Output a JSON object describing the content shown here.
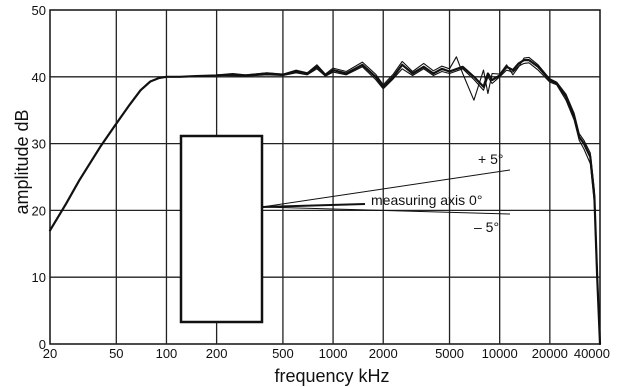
{
  "chart_data": {
    "type": "line",
    "title": "",
    "xlabel": "frequency kHz",
    "ylabel": "amplitude dB",
    "x_scale": "log",
    "xlim": [
      20,
      40000
    ],
    "ylim": [
      0,
      50
    ],
    "grid": true,
    "x_ticks": [
      20,
      50,
      100,
      200,
      500,
      1000,
      2000,
      5000,
      10000,
      20000,
      40000
    ],
    "x_tick_labels": [
      "20",
      "50",
      "100",
      "200",
      "500",
      "1000",
      "2000",
      "5000",
      "10000",
      "20000",
      "40000"
    ],
    "y_ticks": [
      0,
      10,
      20,
      30,
      40,
      50
    ],
    "y_tick_labels": [
      "0",
      "10",
      "20",
      "30",
      "40",
      "50"
    ],
    "annotations": [
      {
        "key": "plus5",
        "text": "+ 5°"
      },
      {
        "key": "axis0",
        "text": "measuring axis 0°"
      },
      {
        "key": "minus5",
        "text": "– 5°"
      }
    ],
    "series": [
      {
        "x": [
          20,
          25,
          30,
          40,
          50,
          60,
          70,
          80,
          90,
          100,
          120,
          150,
          200,
          250,
          300,
          400,
          500,
          600,
          700,
          800,
          900,
          1000,
          1200,
          1500,
          1800,
          2000,
          2300,
          2600,
          3000,
          3500,
          4000,
          4500,
          5000,
          6000,
          7000,
          8000,
          8500,
          9000,
          10000,
          11000,
          12000,
          13000,
          14000,
          15000,
          17000,
          20000,
          22000,
          25000,
          28000,
          30000,
          32000,
          35000,
          37000,
          38500,
          40000
        ],
        "y": [
          17,
          21,
          24.5,
          29.5,
          33,
          35.8,
          38,
          39.3,
          39.8,
          40,
          40,
          40.1,
          40.2,
          40.4,
          40.2,
          40.5,
          40.3,
          40.8,
          40.5,
          41.5,
          40.2,
          41,
          40.5,
          41.8,
          40,
          38.5,
          40,
          41.8,
          40.5,
          41.5,
          40.5,
          41.2,
          40.8,
          41.5,
          40,
          38.5,
          40.5,
          39.5,
          40.2,
          41.5,
          41,
          42,
          42.5,
          42.5,
          41.5,
          39.5,
          39,
          37,
          34,
          31,
          30,
          28,
          22,
          10,
          0
        ]
      },
      {
        "x": [
          200,
          300,
          400,
          500,
          600,
          700,
          800,
          900,
          1000,
          1200,
          1500,
          1800,
          2000,
          2300,
          2600,
          3000,
          3500,
          4000,
          4500,
          5000,
          6000,
          7000,
          8000,
          8500,
          9000,
          10000,
          11000,
          12000,
          13000,
          14000,
          15000,
          17000,
          20000,
          22000,
          25000,
          28000,
          30000,
          32000,
          35000,
          37000,
          38500,
          40000
        ],
        "y": [
          40.2,
          40.1,
          40.3,
          40.2,
          40.6,
          40.3,
          41.2,
          40.1,
          40.7,
          40.3,
          41.5,
          39.6,
          38.2,
          39.7,
          41.2,
          40.2,
          41.2,
          40.2,
          40.8,
          40.5,
          41.2,
          39.6,
          38,
          40,
          39,
          40,
          41,
          40.7,
          41.6,
          42,
          42.1,
          41,
          39.2,
          38.8,
          36.5,
          33.5,
          30.5,
          29.2,
          27,
          21,
          9,
          0
        ]
      },
      {
        "x": [
          200,
          300,
          400,
          500,
          600,
          700,
          800,
          900,
          1000,
          1200,
          1500,
          1800,
          2000,
          2300,
          2600,
          3000,
          3500,
          4000,
          4500,
          5000,
          5500,
          6000,
          7000,
          8000,
          8500,
          9000,
          10000,
          11000,
          12000,
          13000,
          14000,
          15000,
          17000,
          20000,
          22000,
          25000,
          28000,
          30000,
          32000,
          35000,
          37000,
          38500,
          40000
        ],
        "y": [
          40.3,
          40.3,
          40.6,
          40.4,
          41,
          40.6,
          41.8,
          40.4,
          41.3,
          40.8,
          42.2,
          40.4,
          38.8,
          40.4,
          42.3,
          40.8,
          42,
          40.9,
          41.6,
          41.2,
          43,
          40.5,
          36.5,
          41,
          37.5,
          40.5,
          40.4,
          41.8,
          40.3,
          41.5,
          42.8,
          42.9,
          41.8,
          39.7,
          39.2,
          37.4,
          34.5,
          31.5,
          30.5,
          28.6,
          23,
          11,
          0
        ]
      }
    ]
  }
}
